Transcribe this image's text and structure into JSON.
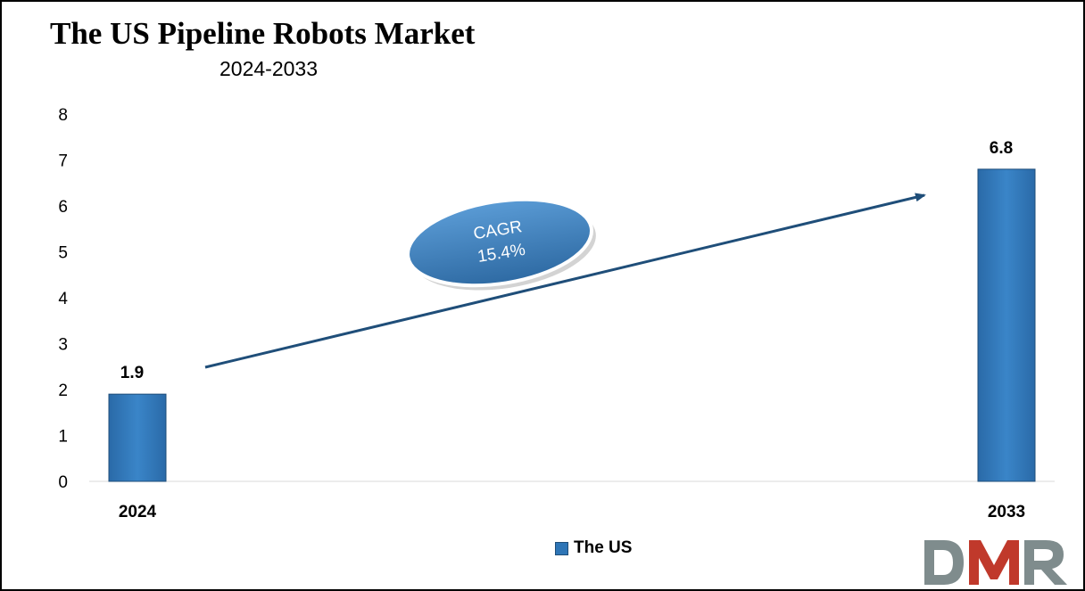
{
  "chart_data": {
    "type": "bar",
    "title": "The US Pipeline Robots Market",
    "subtitle": "2024-2033",
    "categories": [
      "2024",
      "2033"
    ],
    "series": [
      {
        "name": "The US",
        "values": [
          1.9,
          6.8
        ],
        "color": "#2e75b6"
      }
    ],
    "data_labels": [
      "1.9",
      "6.8"
    ],
    "ylim": [
      0,
      8
    ],
    "yticks": [
      "0",
      "1",
      "2",
      "3",
      "4",
      "5",
      "6",
      "7",
      "8"
    ],
    "grid": false,
    "legend_position": "bottom",
    "annotation": {
      "line1": "CAGR",
      "line2": "15.4%",
      "color": "#2e75b6"
    }
  },
  "logo": {
    "text": "DMR",
    "colors": {
      "d": "#7f8c8d",
      "m": "#c0392b",
      "r": "#7f8c8d"
    }
  }
}
